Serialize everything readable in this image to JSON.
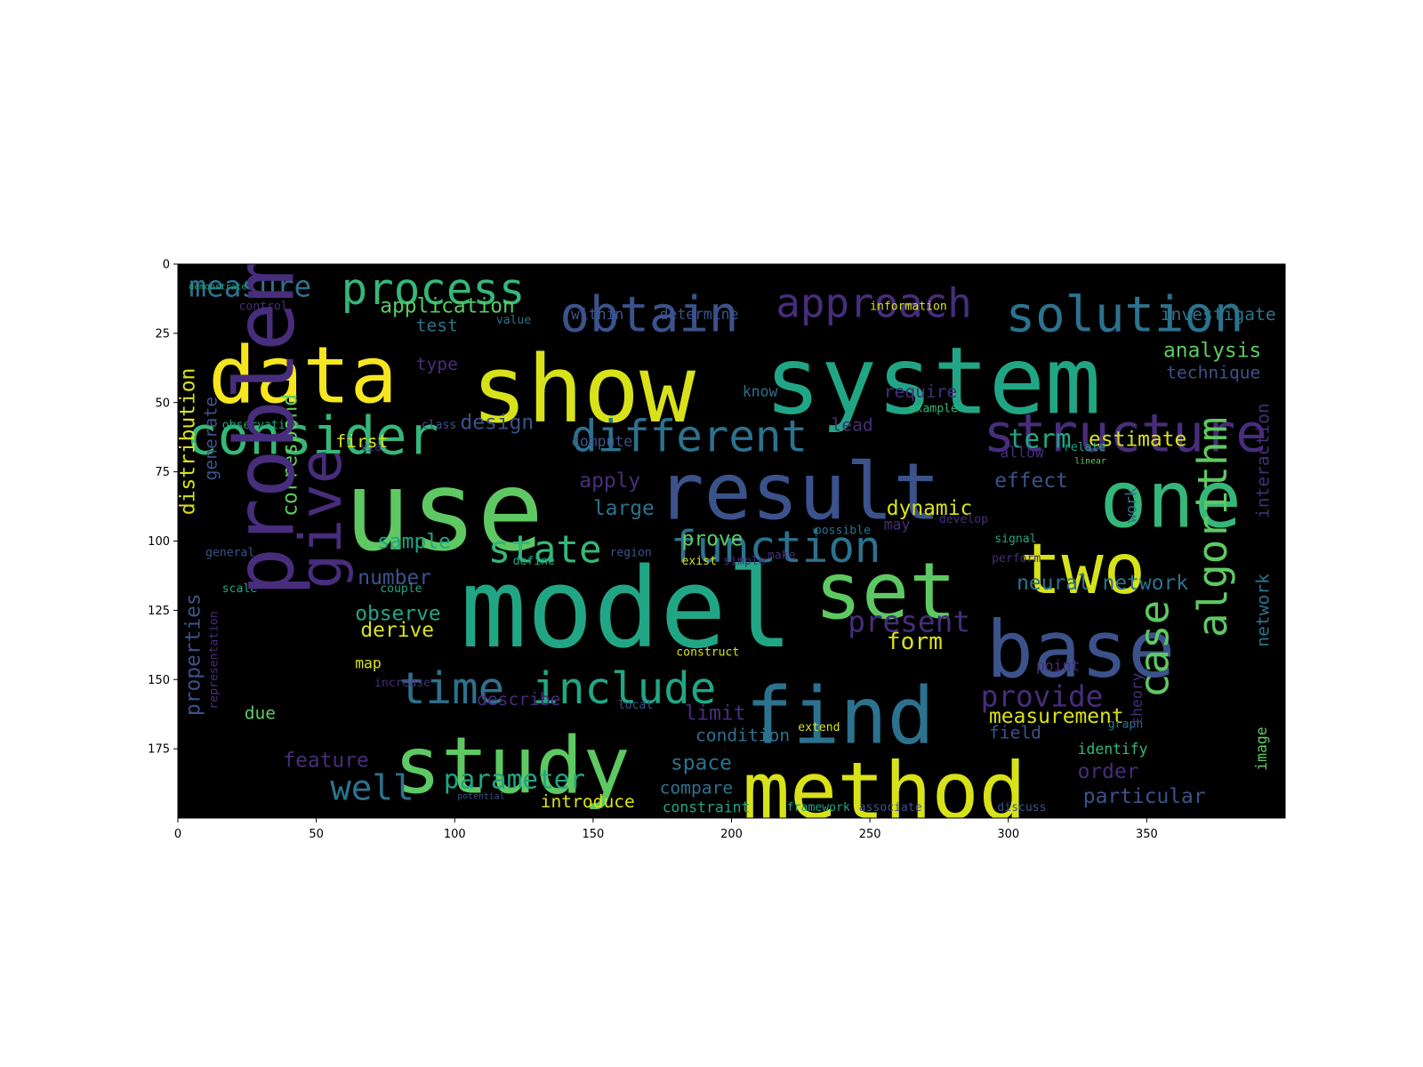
{
  "chart_data": {
    "type": "wordcloud",
    "title": "",
    "xlabel": "",
    "ylabel": "",
    "xlim": [
      0,
      400
    ],
    "ylim": [
      0,
      200
    ],
    "y_inverted": true,
    "xticks": [
      "0",
      "50",
      "100",
      "150",
      "200",
      "250",
      "300",
      "350"
    ],
    "yticks": [
      "0",
      "25",
      "50",
      "75",
      "100",
      "125",
      "150",
      "175"
    ],
    "background": "#000000",
    "colormap": "viridis",
    "words": [
      {
        "text": "model",
        "x": 102,
        "y": 124,
        "size": 38,
        "color": "#21a685"
      },
      {
        "text": "use",
        "x": 60,
        "y": 89,
        "size": 38,
        "color": "#5ec962"
      },
      {
        "text": "show",
        "x": 106,
        "y": 45,
        "size": 32,
        "color": "#d8e219"
      },
      {
        "text": "system",
        "x": 212,
        "y": 42,
        "size": 32,
        "color": "#21a685"
      },
      {
        "text": "result",
        "x": 173,
        "y": 82,
        "size": 27,
        "color": "#3b528b"
      },
      {
        "text": "find",
        "x": 205,
        "y": 163,
        "size": 27,
        "color": "#2c728e"
      },
      {
        "text": "study",
        "x": 78,
        "y": 181,
        "size": 27,
        "color": "#5ec962"
      },
      {
        "text": "method",
        "x": 204,
        "y": 190,
        "size": 27,
        "color": "#d8e219"
      },
      {
        "text": "data",
        "x": 11,
        "y": 40,
        "size": 27,
        "color": "#f5e61e"
      },
      {
        "text": "one",
        "x": 333,
        "y": 85,
        "size": 27,
        "color": "#35b779"
      },
      {
        "text": "base",
        "x": 292,
        "y": 139,
        "size": 27,
        "color": "#3b528b"
      },
      {
        "text": "set",
        "x": 230,
        "y": 118,
        "size": 27,
        "color": "#5ec962"
      },
      {
        "text": "two",
        "x": 304,
        "y": 110,
        "size": 24,
        "color": "#d8e219"
      },
      {
        "text": "consider",
        "x": 3,
        "y": 62,
        "size": 18,
        "color": "#35b779"
      },
      {
        "text": "structure",
        "x": 291,
        "y": 61,
        "size": 18,
        "color": "#472d7b"
      },
      {
        "text": "obtain",
        "x": 138,
        "y": 18,
        "size": 17,
        "color": "#3b528b"
      },
      {
        "text": "solution",
        "x": 299,
        "y": 18,
        "size": 17,
        "color": "#2c728e"
      },
      {
        "text": "different",
        "x": 142,
        "y": 62,
        "size": 15,
        "color": "#2c728e"
      },
      {
        "text": "function",
        "x": 178,
        "y": 102,
        "size": 15,
        "color": "#2c728e"
      },
      {
        "text": "time",
        "x": 80,
        "y": 153,
        "size": 15,
        "color": "#2c728e"
      },
      {
        "text": "include",
        "x": 128,
        "y": 153,
        "size": 15,
        "color": "#21a685"
      },
      {
        "text": "process",
        "x": 59,
        "y": 9,
        "size": 15,
        "color": "#35b779"
      },
      {
        "text": "approach",
        "x": 216,
        "y": 14,
        "size": 14,
        "color": "#472d7b"
      },
      {
        "text": "state",
        "x": 112,
        "y": 103,
        "size": 13,
        "color": "#35b779"
      },
      {
        "text": "well",
        "x": 55,
        "y": 189,
        "size": 12,
        "color": "#2c728e"
      },
      {
        "text": "parameter",
        "x": 96,
        "y": 186,
        "size": 9,
        "color": "#21a685"
      },
      {
        "text": "present",
        "x": 242,
        "y": 129,
        "size": 10,
        "color": "#472d7b"
      },
      {
        "text": "provide",
        "x": 290,
        "y": 156,
        "size": 10,
        "color": "#472d7b"
      },
      {
        "text": "measure",
        "x": 4,
        "y": 8,
        "size": 10,
        "color": "#2c728e"
      },
      {
        "text": "application",
        "x": 73,
        "y": 15,
        "size": 7,
        "color": "#5ec962"
      },
      {
        "text": "analysis",
        "x": 356,
        "y": 31,
        "size": 7,
        "color": "#5ec962"
      },
      {
        "text": "investigate",
        "x": 355,
        "y": 18,
        "size": 6,
        "color": "#2c728e"
      },
      {
        "text": "technique",
        "x": 357,
        "y": 39,
        "size": 6,
        "color": "#3b528b"
      },
      {
        "text": "estimate",
        "x": 329,
        "y": 63,
        "size": 7,
        "color": "#d8e219"
      },
      {
        "text": "term",
        "x": 300,
        "y": 63,
        "size": 9,
        "color": "#21a685"
      },
      {
        "text": "effect",
        "x": 295,
        "y": 78,
        "size": 7,
        "color": "#3b528b"
      },
      {
        "text": "dynamic",
        "x": 256,
        "y": 88,
        "size": 7,
        "color": "#d8e219"
      },
      {
        "text": "prove",
        "x": 182,
        "y": 99,
        "size": 7,
        "color": "#5ec962"
      },
      {
        "text": "limit",
        "x": 183,
        "y": 162,
        "size": 7,
        "color": "#472d7b"
      },
      {
        "text": "condition",
        "x": 187,
        "y": 170,
        "size": 6,
        "color": "#2c728e"
      },
      {
        "text": "space",
        "x": 178,
        "y": 180,
        "size": 7,
        "color": "#2c728e"
      },
      {
        "text": "compare",
        "x": 174,
        "y": 189,
        "size": 6,
        "color": "#2c728e"
      },
      {
        "text": "constraint",
        "x": 175,
        "y": 196,
        "size": 5,
        "color": "#21a685"
      },
      {
        "text": "introduce",
        "x": 131,
        "y": 194,
        "size": 6,
        "color": "#d8e219"
      },
      {
        "text": "form",
        "x": 256,
        "y": 136,
        "size": 8,
        "color": "#d8e219"
      },
      {
        "text": "measurement",
        "x": 293,
        "y": 163,
        "size": 7,
        "color": "#d8e219"
      },
      {
        "text": "field",
        "x": 293,
        "y": 169,
        "size": 6,
        "color": "#3b528b"
      },
      {
        "text": "order",
        "x": 325,
        "y": 183,
        "size": 7,
        "color": "#472d7b"
      },
      {
        "text": "particular",
        "x": 327,
        "y": 192,
        "size": 7,
        "color": "#3b528b"
      },
      {
        "text": "neural network",
        "x": 303,
        "y": 115,
        "size": 7,
        "color": "#2c728e"
      },
      {
        "text": "sample",
        "x": 72,
        "y": 100,
        "size": 7,
        "color": "#21a685"
      },
      {
        "text": "number",
        "x": 65,
        "y": 113,
        "size": 7,
        "color": "#3b528b"
      },
      {
        "text": "observe",
        "x": 64,
        "y": 126,
        "size": 7,
        "color": "#21a685"
      },
      {
        "text": "derive",
        "x": 66,
        "y": 132,
        "size": 7,
        "color": "#d8e219"
      },
      {
        "text": "feature",
        "x": 38,
        "y": 179,
        "size": 7,
        "color": "#472d7b"
      },
      {
        "text": "apply",
        "x": 145,
        "y": 78,
        "size": 7,
        "color": "#472d7b"
      },
      {
        "text": "large",
        "x": 150,
        "y": 88,
        "size": 7,
        "color": "#2c728e"
      },
      {
        "text": "design",
        "x": 102,
        "y": 57,
        "size": 7,
        "color": "#3b528b"
      },
      {
        "text": "test",
        "x": 86,
        "y": 22,
        "size": 6,
        "color": "#2c728e"
      },
      {
        "text": "type",
        "x": 86,
        "y": 36,
        "size": 6,
        "color": "#472d7b"
      },
      {
        "text": "within",
        "x": 142,
        "y": 18,
        "size": 5,
        "color": "#3b528b"
      },
      {
        "text": "determine",
        "x": 174,
        "y": 18,
        "size": 5,
        "color": "#3b528b"
      },
      {
        "text": "require",
        "x": 255,
        "y": 46,
        "size": 6,
        "color": "#472d7b"
      },
      {
        "text": "describe",
        "x": 108,
        "y": 157,
        "size": 6,
        "color": "#472d7b"
      },
      {
        "text": "compute",
        "x": 142,
        "y": 64,
        "size": 5,
        "color": "#3b528b"
      },
      {
        "text": "information",
        "x": 250,
        "y": 15,
        "size": 4,
        "color": "#d8e219"
      },
      {
        "text": "possible",
        "x": 230,
        "y": 96,
        "size": 4,
        "color": "#2c728e"
      },
      {
        "text": "may",
        "x": 255,
        "y": 94,
        "size": 5,
        "color": "#472d7b"
      },
      {
        "text": "develop",
        "x": 275,
        "y": 92,
        "size": 4,
        "color": "#472d7b"
      },
      {
        "text": "map",
        "x": 64,
        "y": 144,
        "size": 5,
        "color": "#d8e219"
      },
      {
        "text": "due",
        "x": 24,
        "y": 162,
        "size": 6,
        "color": "#5ec962"
      },
      {
        "text": "scale",
        "x": 16,
        "y": 117,
        "size": 4,
        "color": "#21a685"
      },
      {
        "text": "general",
        "x": 10,
        "y": 104,
        "size": 4,
        "color": "#3b528b"
      },
      {
        "text": "observation",
        "x": 16,
        "y": 58,
        "size": 4,
        "color": "#21a685"
      },
      {
        "text": "class",
        "x": 88,
        "y": 58,
        "size": 4,
        "color": "#3b528b"
      },
      {
        "text": "via",
        "x": 66,
        "y": 66,
        "size": 4,
        "color": "#472d7b"
      },
      {
        "text": "control",
        "x": 22,
        "y": 15,
        "size": 4,
        "color": "#472d7b"
      },
      {
        "text": "demonstrate",
        "x": 4,
        "y": 8,
        "size": 3,
        "color": "#21a685"
      },
      {
        "text": "lead",
        "x": 236,
        "y": 58,
        "size": 6,
        "color": "#472d7b"
      },
      {
        "text": "example",
        "x": 264,
        "y": 52,
        "size": 4,
        "color": "#35b779"
      },
      {
        "text": "allow",
        "x": 297,
        "y": 68,
        "size": 5,
        "color": "#472d7b"
      },
      {
        "text": "relate",
        "x": 320,
        "y": 66,
        "size": 4,
        "color": "#21a685"
      },
      {
        "text": "linear",
        "x": 324,
        "y": 71,
        "size": 3,
        "color": "#5ec962"
      },
      {
        "text": "signal",
        "x": 295,
        "y": 99,
        "size": 4,
        "color": "#21a685"
      },
      {
        "text": "perform",
        "x": 294,
        "y": 106,
        "size": 4,
        "color": "#472d7b"
      },
      {
        "text": "point",
        "x": 310,
        "y": 145,
        "size": 5,
        "color": "#472d7b"
      },
      {
        "text": "identify",
        "x": 325,
        "y": 175,
        "size": 5,
        "color": "#35b779"
      },
      {
        "text": "graph",
        "x": 336,
        "y": 166,
        "size": 4,
        "color": "#2c728e"
      },
      {
        "text": "discuss",
        "x": 296,
        "y": 196,
        "size": 4,
        "color": "#3b528b"
      },
      {
        "text": "framework",
        "x": 220,
        "y": 196,
        "size": 4,
        "color": "#21a685"
      },
      {
        "text": "associate",
        "x": 246,
        "y": 196,
        "size": 4,
        "color": "#3b528b"
      },
      {
        "text": "extend",
        "x": 224,
        "y": 167,
        "size": 4,
        "color": "#d8e219"
      },
      {
        "text": "construct",
        "x": 180,
        "y": 140,
        "size": 4,
        "color": "#d8e219"
      },
      {
        "text": "region",
        "x": 156,
        "y": 104,
        "size": 4,
        "color": "#3b528b"
      },
      {
        "text": "define",
        "x": 121,
        "y": 107,
        "size": 4,
        "color": "#21a685"
      },
      {
        "text": "couple",
        "x": 73,
        "y": 117,
        "size": 4,
        "color": "#21a685"
      },
      {
        "text": "increase",
        "x": 71,
        "y": 151,
        "size": 4,
        "color": "#472d7b"
      },
      {
        "text": "local",
        "x": 159,
        "y": 159,
        "size": 4,
        "color": "#3b528b"
      },
      {
        "text": "potential",
        "x": 101,
        "y": 192,
        "size": 3,
        "color": "#3b528b"
      },
      {
        "text": "value",
        "x": 115,
        "y": 20,
        "size": 4,
        "color": "#2c728e"
      },
      {
        "text": "know",
        "x": 204,
        "y": 46,
        "size": 5,
        "color": "#2c728e"
      },
      {
        "text": "exist",
        "x": 182,
        "y": 107,
        "size": 4,
        "color": "#d8e219"
      },
      {
        "text": "simple",
        "x": 197,
        "y": 107,
        "size": 4,
        "color": "#472d7b"
      },
      {
        "text": "make",
        "x": 213,
        "y": 105,
        "size": 4,
        "color": "#472d7b"
      },
      {
        "text": "first",
        "x": 57,
        "y": 64,
        "size": 6,
        "color": "#d8e219"
      },
      {
        "text": "distribution",
        "x": 0,
        "y": 64,
        "size": 7,
        "color": "#d8e219"
      },
      {
        "text": "generate",
        "x": 9,
        "y": 63,
        "size": 6,
        "color": "#3b528b"
      },
      {
        "text": "correspond",
        "x": 37,
        "y": 69,
        "size": 7,
        "color": "#5ec962"
      },
      {
        "text": "properties",
        "x": 2,
        "y": 141,
        "size": 7,
        "color": "#3b528b"
      },
      {
        "text": "representation",
        "x": 11,
        "y": 143,
        "size": 4,
        "color": "#472d7b"
      },
      {
        "text": "problem",
        "x": 18,
        "y": 58,
        "size": 28,
        "color": "#472d7b"
      },
      {
        "text": "give",
        "x": 42,
        "y": 92,
        "size": 20,
        "color": "#472d7b"
      },
      {
        "text": "case",
        "x": 346,
        "y": 139,
        "size": 14,
        "color": "#5ec962"
      },
      {
        "text": "algorithm",
        "x": 367,
        "y": 95,
        "size": 14,
        "color": "#5ec962"
      },
      {
        "text": "interaction",
        "x": 389,
        "y": 71,
        "size": 6,
        "color": "#472d7b"
      },
      {
        "text": "network",
        "x": 389,
        "y": 125,
        "size": 6,
        "color": "#2c728e"
      },
      {
        "text": "image",
        "x": 389,
        "y": 175,
        "size": 5,
        "color": "#5ec962"
      },
      {
        "text": "work",
        "x": 342,
        "y": 87,
        "size": 5,
        "color": "#2c728e"
      },
      {
        "text": "theory",
        "x": 344,
        "y": 157,
        "size": 5,
        "color": "#472d7b"
      }
    ]
  }
}
